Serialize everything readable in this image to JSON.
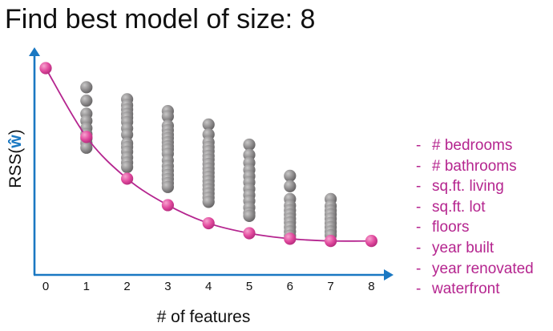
{
  "title": "Find best model of size: 8",
  "chart_data": {
    "type": "scatter",
    "xlabel": "# of features",
    "ylabel_prefix": "RSS(",
    "ylabel_vector": "ŵ",
    "ylabel_suffix": ")",
    "x_ticks": [
      "0",
      "1",
      "2",
      "3",
      "4",
      "5",
      "6",
      "7",
      "8"
    ],
    "xlim": [
      0,
      8
    ],
    "colors": {
      "axis": "#1a78c2",
      "candidate_points": "#8c8a8b",
      "best_points": "#e0489d",
      "best_curve": "#b5258f"
    },
    "series": [
      {
        "values": [
          {
            "x": 1,
            "y": [
              0.906,
              0.84,
              0.776,
              0.741,
              0.705,
              0.676,
              0.654,
              0.632,
              0.609
            ]
          },
          {
            "x": 2,
            "y": [
              0.847,
              0.818,
              0.797,
              0.775,
              0.757,
              0.735,
              0.704,
              0.673,
              0.631,
              0.612,
              0.589,
              0.561,
              0.536,
              0.514
            ]
          },
          {
            "x": 3,
            "y": [
              0.789,
              0.763,
              0.717,
              0.695,
              0.673,
              0.656,
              0.636,
              0.616,
              0.601,
              0.579,
              0.547,
              0.519,
              0.497,
              0.475,
              0.455,
              0.435,
              0.416
            ]
          },
          {
            "x": 4,
            "y": [
              0.723,
              0.674,
              0.636,
              0.612,
              0.592,
              0.569,
              0.551,
              0.529,
              0.507,
              0.486,
              0.466,
              0.446,
              0.425,
              0.405,
              0.385,
              0.364,
              0.343
            ]
          },
          {
            "x": 5,
            "y": [
              0.624,
              0.574,
              0.535,
              0.5,
              0.469,
              0.439,
              0.406,
              0.376,
              0.347,
              0.315,
              0.288,
              0.274
            ]
          },
          {
            "x": 6,
            "y": [
              0.471,
              0.42,
              0.357,
              0.325,
              0.302,
              0.281,
              0.261,
              0.242,
              0.219,
              0.198,
              0.177
            ]
          },
          {
            "x": 7,
            "y": [
              0.357,
              0.323,
              0.301,
              0.282,
              0.261,
              0.239,
              0.219,
              0.198,
              0.179
            ]
          }
        ]
      },
      {
        "x": [
          0,
          1,
          2,
          3,
          4,
          5,
          6,
          7,
          8
        ],
        "y": [
          1.0,
          0.662,
          0.457,
          0.327,
          0.238,
          0.189,
          0.162,
          0.151,
          0.151
        ]
      }
    ]
  },
  "features": [
    "# bedrooms",
    "# bathrooms",
    "sq.ft. living",
    "sq.ft. lot",
    "floors",
    "year built",
    "year renovated",
    "waterfront"
  ],
  "feature_bullet": "-"
}
